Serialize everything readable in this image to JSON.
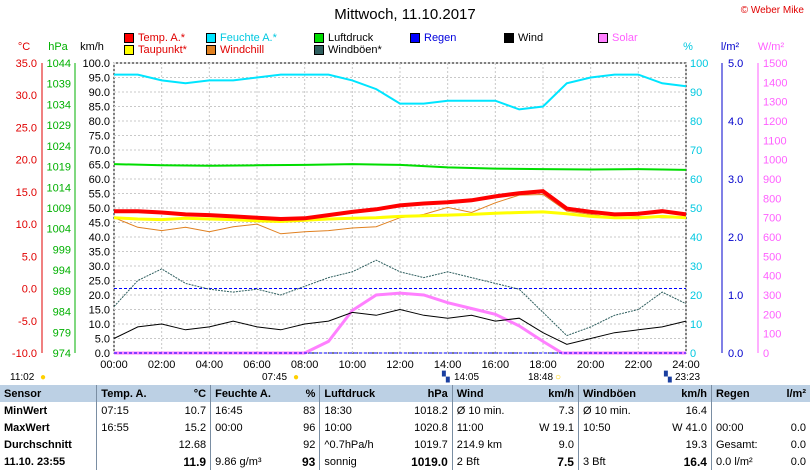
{
  "title": "Mittwoch, 11.10.2017",
  "copyright": "© Weber Mike",
  "legend": {
    "col1": [
      {
        "label": "Temp. A.*",
        "color": "#ff0000"
      },
      {
        "label": "Taupunkt*",
        "color": "#ffff00"
      }
    ],
    "col2": [
      {
        "label": "Feuchte A.*",
        "color": "#00e5ff"
      },
      {
        "label": "Windchill",
        "color": "#e08020"
      }
    ],
    "col3": [
      {
        "label": "Luftdruck",
        "color": "#00dd00"
      },
      {
        "label": "Windböen*",
        "color": "#2e5e5e"
      }
    ],
    "col4": [
      {
        "label": "Regen",
        "color": "#0000ff"
      }
    ],
    "col5": [
      {
        "label": "Wind",
        "color": "#000000"
      }
    ],
    "col6": [
      {
        "label": "Solar",
        "color": "#ff80ff"
      }
    ]
  },
  "axis_units": {
    "temp": "°C",
    "pressure": "hPa",
    "wind": "km/h",
    "humidity": "%",
    "rain": "l/m²",
    "solar": "W/m²"
  },
  "events": {
    "sunrise_time": "07:45",
    "sunset_time": "18:48",
    "time_left": "11:02",
    "marker1_time": "14:05",
    "marker2_time": "23:23"
  },
  "chart_data": {
    "type": "line",
    "title": "Mittwoch, 11.10.2017",
    "x_ticks": [
      "00:00",
      "02:00",
      "04:00",
      "06:00",
      "08:00",
      "10:00",
      "12:00",
      "14:00",
      "16:00",
      "18:00",
      "20:00",
      "22:00",
      "24:00"
    ],
    "axes": {
      "temp_c": {
        "range": [
          -10,
          35
        ],
        "ticks": [
          "35.0",
          "30.0",
          "25.0",
          "20.0",
          "15.0",
          "10.0",
          "5.0",
          "0.0",
          "-5.0",
          "-10.0"
        ]
      },
      "pressure_hpa": {
        "range": [
          974,
          1044
        ],
        "ticks": [
          "1044",
          "1039",
          "1034",
          "1029",
          "1024",
          "1019",
          "1014",
          "1009",
          "1004",
          "999",
          "994",
          "989",
          "984",
          "979",
          "974"
        ]
      },
      "wind_kmh": {
        "range": [
          0,
          100
        ],
        "ticks": [
          "100.0",
          "95.0",
          "90.0",
          "85.0",
          "80.0",
          "75.0",
          "70.0",
          "65.0",
          "60.0",
          "55.0",
          "50.0",
          "45.0",
          "40.0",
          "35.0",
          "30.0",
          "25.0",
          "20.0",
          "15.0",
          "10.0",
          "5.0",
          "0.0"
        ]
      },
      "humidity_pct": {
        "range": [
          0,
          100
        ],
        "ticks": [
          "100",
          "90",
          "80",
          "70",
          "60",
          "50",
          "40",
          "30",
          "20",
          "10",
          "0"
        ]
      },
      "rain_lm2": {
        "range": [
          0,
          5
        ],
        "ticks": [
          "5.0",
          "4.0",
          "3.0",
          "2.0",
          "1.0",
          "0.0"
        ]
      },
      "solar_wm2": {
        "range": [
          0,
          1500
        ],
        "ticks": [
          "1500",
          "1400",
          "1300",
          "1200",
          "1100",
          "1000",
          "900",
          "800",
          "700",
          "600",
          "500",
          "400",
          "300",
          "200",
          "100",
          "0"
        ]
      }
    },
    "series": [
      {
        "name": "Temp. A.*",
        "axis": "temp_c",
        "color": "#ff0000",
        "x": [
          0,
          1,
          2,
          3,
          4,
          5,
          6,
          7,
          8,
          9,
          10,
          11,
          12,
          13,
          14,
          15,
          16,
          17,
          18,
          19,
          20,
          21,
          22,
          23,
          24
        ],
        "values": [
          12.0,
          12.0,
          11.8,
          11.5,
          11.4,
          11.2,
          11.0,
          10.8,
          10.9,
          11.4,
          11.9,
          12.3,
          12.9,
          13.2,
          13.4,
          13.7,
          14.3,
          14.8,
          15.1,
          12.4,
          11.9,
          11.5,
          11.6,
          12.0,
          11.5
        ]
      },
      {
        "name": "Taupunkt*",
        "axis": "temp_c",
        "color": "#ffff00",
        "x": [
          0,
          1,
          2,
          3,
          4,
          5,
          6,
          7,
          8,
          9,
          10,
          11,
          12,
          13,
          14,
          15,
          16,
          17,
          18,
          19,
          20,
          21,
          22,
          23,
          24
        ],
        "values": [
          11.0,
          10.8,
          10.7,
          10.9,
          10.8,
          10.7,
          10.5,
          10.4,
          10.6,
          10.8,
          10.9,
          11.0,
          11.2,
          11.3,
          11.4,
          11.5,
          11.7,
          11.8,
          11.9,
          11.6,
          11.2,
          11.0,
          11.0,
          11.2,
          11.0
        ]
      },
      {
        "name": "Windchill",
        "axis": "temp_c",
        "color": "#e08020",
        "x": [
          0,
          1,
          2,
          3,
          4,
          5,
          6,
          7,
          8,
          9,
          10,
          11,
          12,
          13,
          14,
          15,
          16,
          17,
          18,
          19,
          20,
          21,
          22,
          23,
          24
        ],
        "values": [
          11.0,
          9.5,
          9.0,
          9.5,
          8.8,
          9.6,
          10.0,
          8.5,
          8.8,
          9.0,
          9.4,
          9.6,
          11.0,
          11.5,
          12.6,
          11.8,
          13.3,
          14.5,
          14.6,
          12.0,
          11.5,
          11.0,
          11.2,
          11.0,
          11.0
        ]
      },
      {
        "name": "Feuchte A.*",
        "axis": "humidity_pct",
        "color": "#00e5ff",
        "x": [
          0,
          1,
          2,
          3,
          4,
          5,
          6,
          7,
          8,
          9,
          10,
          11,
          12,
          13,
          14,
          15,
          16,
          17,
          18,
          19,
          20,
          21,
          22,
          23,
          24
        ],
        "values": [
          96,
          96,
          94,
          93,
          94,
          94,
          95,
          96,
          96,
          96,
          94,
          91,
          86,
          86,
          87,
          87,
          87,
          84,
          85,
          93,
          95,
          96,
          96,
          93,
          92
        ]
      },
      {
        "name": "Luftdruck",
        "axis": "pressure_hpa",
        "color": "#00dd00",
        "x": [
          0,
          2,
          4,
          6,
          8,
          10,
          12,
          14,
          16,
          18,
          20,
          22,
          24
        ],
        "values": [
          1019.6,
          1019.3,
          1019.2,
          1019.3,
          1019.4,
          1019.6,
          1019.4,
          1018.8,
          1018.5,
          1018.4,
          1018.3,
          1018.4,
          1018.2
        ]
      },
      {
        "name": "Wind",
        "axis": "wind_kmh",
        "color": "#000000",
        "x": [
          0,
          1,
          2,
          3,
          4,
          5,
          6,
          7,
          8,
          9,
          10,
          11,
          12,
          13,
          14,
          15,
          16,
          17,
          18,
          19,
          20,
          21,
          22,
          23,
          24
        ],
        "values": [
          5,
          9,
          10,
          8,
          9,
          11,
          9,
          8,
          10,
          11,
          14,
          13,
          15,
          13,
          12,
          13,
          11,
          12,
          7,
          3,
          5,
          7,
          8,
          9,
          11
        ]
      },
      {
        "name": "Windböen*",
        "axis": "wind_kmh",
        "color": "#2e5e5e",
        "x": [
          0,
          1,
          2,
          3,
          4,
          5,
          6,
          7,
          8,
          9,
          10,
          11,
          12,
          13,
          14,
          15,
          16,
          17,
          18,
          19,
          20,
          21,
          22,
          23,
          24
        ],
        "values": [
          16,
          25,
          29,
          24,
          22,
          21,
          22,
          20,
          23,
          26,
          28,
          32,
          28,
          26,
          28,
          26,
          24,
          22,
          14,
          6,
          9,
          13,
          15,
          21,
          17
        ]
      },
      {
        "name": "Regen",
        "axis": "rain_lm2",
        "color": "#0000ff",
        "x": [
          0,
          24
        ],
        "values": [
          0.0,
          0.0
        ]
      },
      {
        "name": "Solar",
        "axis": "solar_wm2",
        "color": "#ff80ff",
        "x": [
          0,
          7.75,
          8,
          9,
          10,
          11,
          12,
          13,
          14,
          15,
          16,
          17,
          18,
          18.8,
          24
        ],
        "values": [
          0,
          0,
          0,
          60,
          220,
          300,
          310,
          300,
          260,
          230,
          200,
          140,
          60,
          0,
          0
        ]
      }
    ]
  },
  "table": {
    "headers": [
      "Sensor",
      "Temp. A.",
      "°C",
      "Feuchte A.",
      "%",
      "Luftdruck",
      "hPa",
      "Wind",
      "km/h",
      "Windböen",
      "km/h",
      "Regen",
      "l/m²"
    ],
    "rows": [
      {
        "label": "MinWert",
        "cells": [
          "07:15",
          "10.7",
          "16:45",
          "83",
          "18:30",
          "1018.2",
          "Ø 10 min.",
          "7.3",
          "Ø 10 min.",
          "16.4",
          "",
          ""
        ]
      },
      {
        "label": "MaxWert",
        "cells": [
          "16:55",
          "15.2",
          "00:00",
          "96",
          "10:00",
          "1020.8",
          "11:00",
          "W 19.1",
          "10:50",
          "W 41.0",
          "00:00",
          "0.0"
        ]
      },
      {
        "label": "Durchschnitt",
        "cells": [
          "",
          "12.68",
          "",
          "92",
          "^0.7hPa/h",
          "1019.7",
          "214.9 km",
          "9.0",
          "",
          "19.3",
          "Gesamt:",
          "0.0"
        ]
      },
      {
        "label": "11.10. 23:55",
        "cells": [
          "",
          "11.9",
          "9.86 g/m³",
          "93",
          "sonnig",
          "1019.0",
          "2 Bft",
          "7.5",
          "3 Bft",
          "16.4",
          "0.0 l/m²",
          "0.0"
        ]
      }
    ]
  }
}
